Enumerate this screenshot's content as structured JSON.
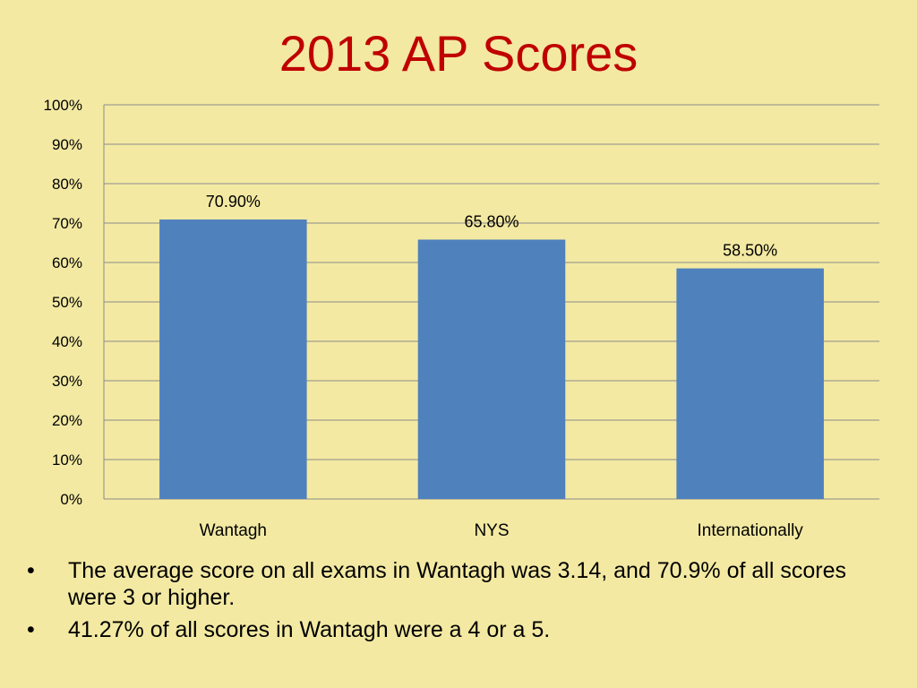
{
  "slide": {
    "title": "2013 AP Scores",
    "bullets": [
      "The average score on all exams  in Wantagh was 3.14, and 70.9% of all scores were 3 or higher.",
      "41.27% of all scores in Wantagh were a 4 or a 5."
    ],
    "bullet_symbol": "•"
  },
  "chart_data": {
    "type": "bar",
    "title": "",
    "xlabel": "",
    "ylabel": "",
    "categories": [
      "Wantagh",
      "NYS",
      "Internationally"
    ],
    "values": [
      70.9,
      65.8,
      58.5
    ],
    "data_labels": [
      "70.90%",
      "65.80%",
      "58.50%"
    ],
    "ylim": [
      0,
      100
    ],
    "yticks": [
      "0%",
      "10%",
      "20%",
      "30%",
      "40%",
      "50%",
      "60%",
      "70%",
      "80%",
      "90%",
      "100%"
    ],
    "grid": true,
    "legend": "none",
    "bar_color": "#4f81bd",
    "grid_color": "#8c8c8c"
  }
}
